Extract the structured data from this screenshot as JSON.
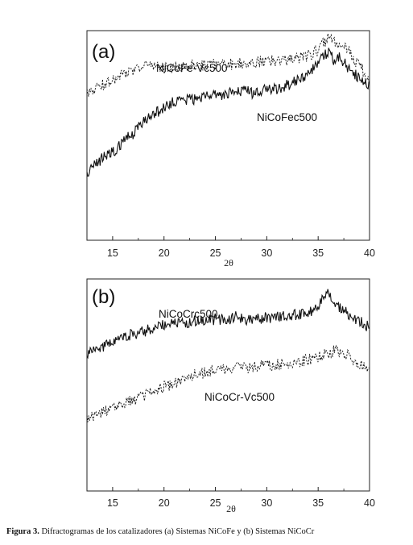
{
  "caption": {
    "label": "Figura 3.",
    "text": " Difractogramas de los catalizadores (a) Sistemas NiCoFe y (b) Sistemas NiCoCr"
  },
  "chart_data": [
    {
      "type": "line",
      "panel_label": "(a)",
      "xlabel": "2θ",
      "ylabel": "",
      "xlim": [
        12.5,
        40
      ],
      "x_ticks": [
        15,
        20,
        25,
        30,
        35,
        40
      ],
      "grid": false,
      "series": [
        {
          "name": "NiCoFe-Vc500",
          "style": "dashed",
          "x": [
            12.5,
            13,
            14,
            15,
            16,
            17,
            18,
            19,
            20,
            21,
            22,
            23,
            24,
            25,
            26,
            27,
            28,
            29,
            30,
            31,
            32,
            33,
            34,
            35,
            35.5,
            36,
            36.5,
            37,
            37.5,
            38,
            38.5,
            39,
            40
          ],
          "y": [
            0.7,
            0.72,
            0.74,
            0.76,
            0.79,
            0.81,
            0.83,
            0.84,
            0.82,
            0.83,
            0.83,
            0.84,
            0.83,
            0.84,
            0.84,
            0.84,
            0.85,
            0.85,
            0.86,
            0.85,
            0.86,
            0.87,
            0.88,
            0.91,
            0.94,
            0.97,
            0.95,
            0.92,
            0.93,
            0.9,
            0.86,
            0.84,
            0.75
          ]
        },
        {
          "name": "NiCoFec500",
          "style": "solid",
          "x": [
            12.5,
            13,
            14,
            15,
            16,
            17,
            18,
            19,
            20,
            21,
            22,
            23,
            24,
            25,
            26,
            27,
            28,
            29,
            30,
            31,
            32,
            33,
            34,
            35,
            35.5,
            36,
            36.5,
            37,
            37.5,
            38,
            38.5,
            39,
            40
          ],
          "y": [
            0.32,
            0.35,
            0.39,
            0.42,
            0.47,
            0.51,
            0.56,
            0.6,
            0.63,
            0.66,
            0.67,
            0.67,
            0.69,
            0.69,
            0.7,
            0.71,
            0.71,
            0.7,
            0.72,
            0.72,
            0.74,
            0.76,
            0.79,
            0.84,
            0.88,
            0.9,
            0.86,
            0.88,
            0.85,
            0.82,
            0.8,
            0.77,
            0.74
          ]
        }
      ]
    },
    {
      "type": "line",
      "panel_label": "(b)",
      "xlabel": "2θ",
      "ylabel": "",
      "xlim": [
        12.5,
        40
      ],
      "x_ticks": [
        15,
        20,
        25,
        30,
        35,
        40
      ],
      "grid": false,
      "series": [
        {
          "name": "NiCoCrc500",
          "style": "solid",
          "x": [
            12.5,
            13,
            14,
            15,
            16,
            17,
            18,
            19,
            20,
            21,
            22,
            23,
            24,
            25,
            26,
            27,
            28,
            29,
            30,
            31,
            32,
            33,
            34,
            35,
            35.5,
            36,
            36.5,
            37,
            37.5,
            38,
            38.5,
            39,
            40
          ],
          "y": [
            0.64,
            0.66,
            0.68,
            0.7,
            0.72,
            0.74,
            0.75,
            0.77,
            0.78,
            0.79,
            0.79,
            0.8,
            0.8,
            0.81,
            0.81,
            0.82,
            0.81,
            0.81,
            0.82,
            0.82,
            0.83,
            0.83,
            0.84,
            0.87,
            0.91,
            0.93,
            0.9,
            0.87,
            0.85,
            0.83,
            0.82,
            0.8,
            0.77
          ]
        },
        {
          "name": "NiCoCr-Vc500",
          "style": "dashed",
          "x": [
            12.5,
            13,
            14,
            15,
            16,
            17,
            18,
            19,
            20,
            21,
            22,
            23,
            24,
            25,
            26,
            27,
            28,
            29,
            30,
            31,
            32,
            33,
            34,
            35,
            35.5,
            36,
            36.5,
            37,
            37.5,
            38,
            38.5,
            39,
            40
          ],
          "y": [
            0.34,
            0.35,
            0.37,
            0.39,
            0.41,
            0.43,
            0.45,
            0.47,
            0.49,
            0.51,
            0.53,
            0.55,
            0.56,
            0.57,
            0.57,
            0.58,
            0.58,
            0.59,
            0.59,
            0.6,
            0.6,
            0.61,
            0.62,
            0.63,
            0.64,
            0.65,
            0.66,
            0.66,
            0.65,
            0.64,
            0.62,
            0.6,
            0.57
          ]
        }
      ]
    }
  ]
}
